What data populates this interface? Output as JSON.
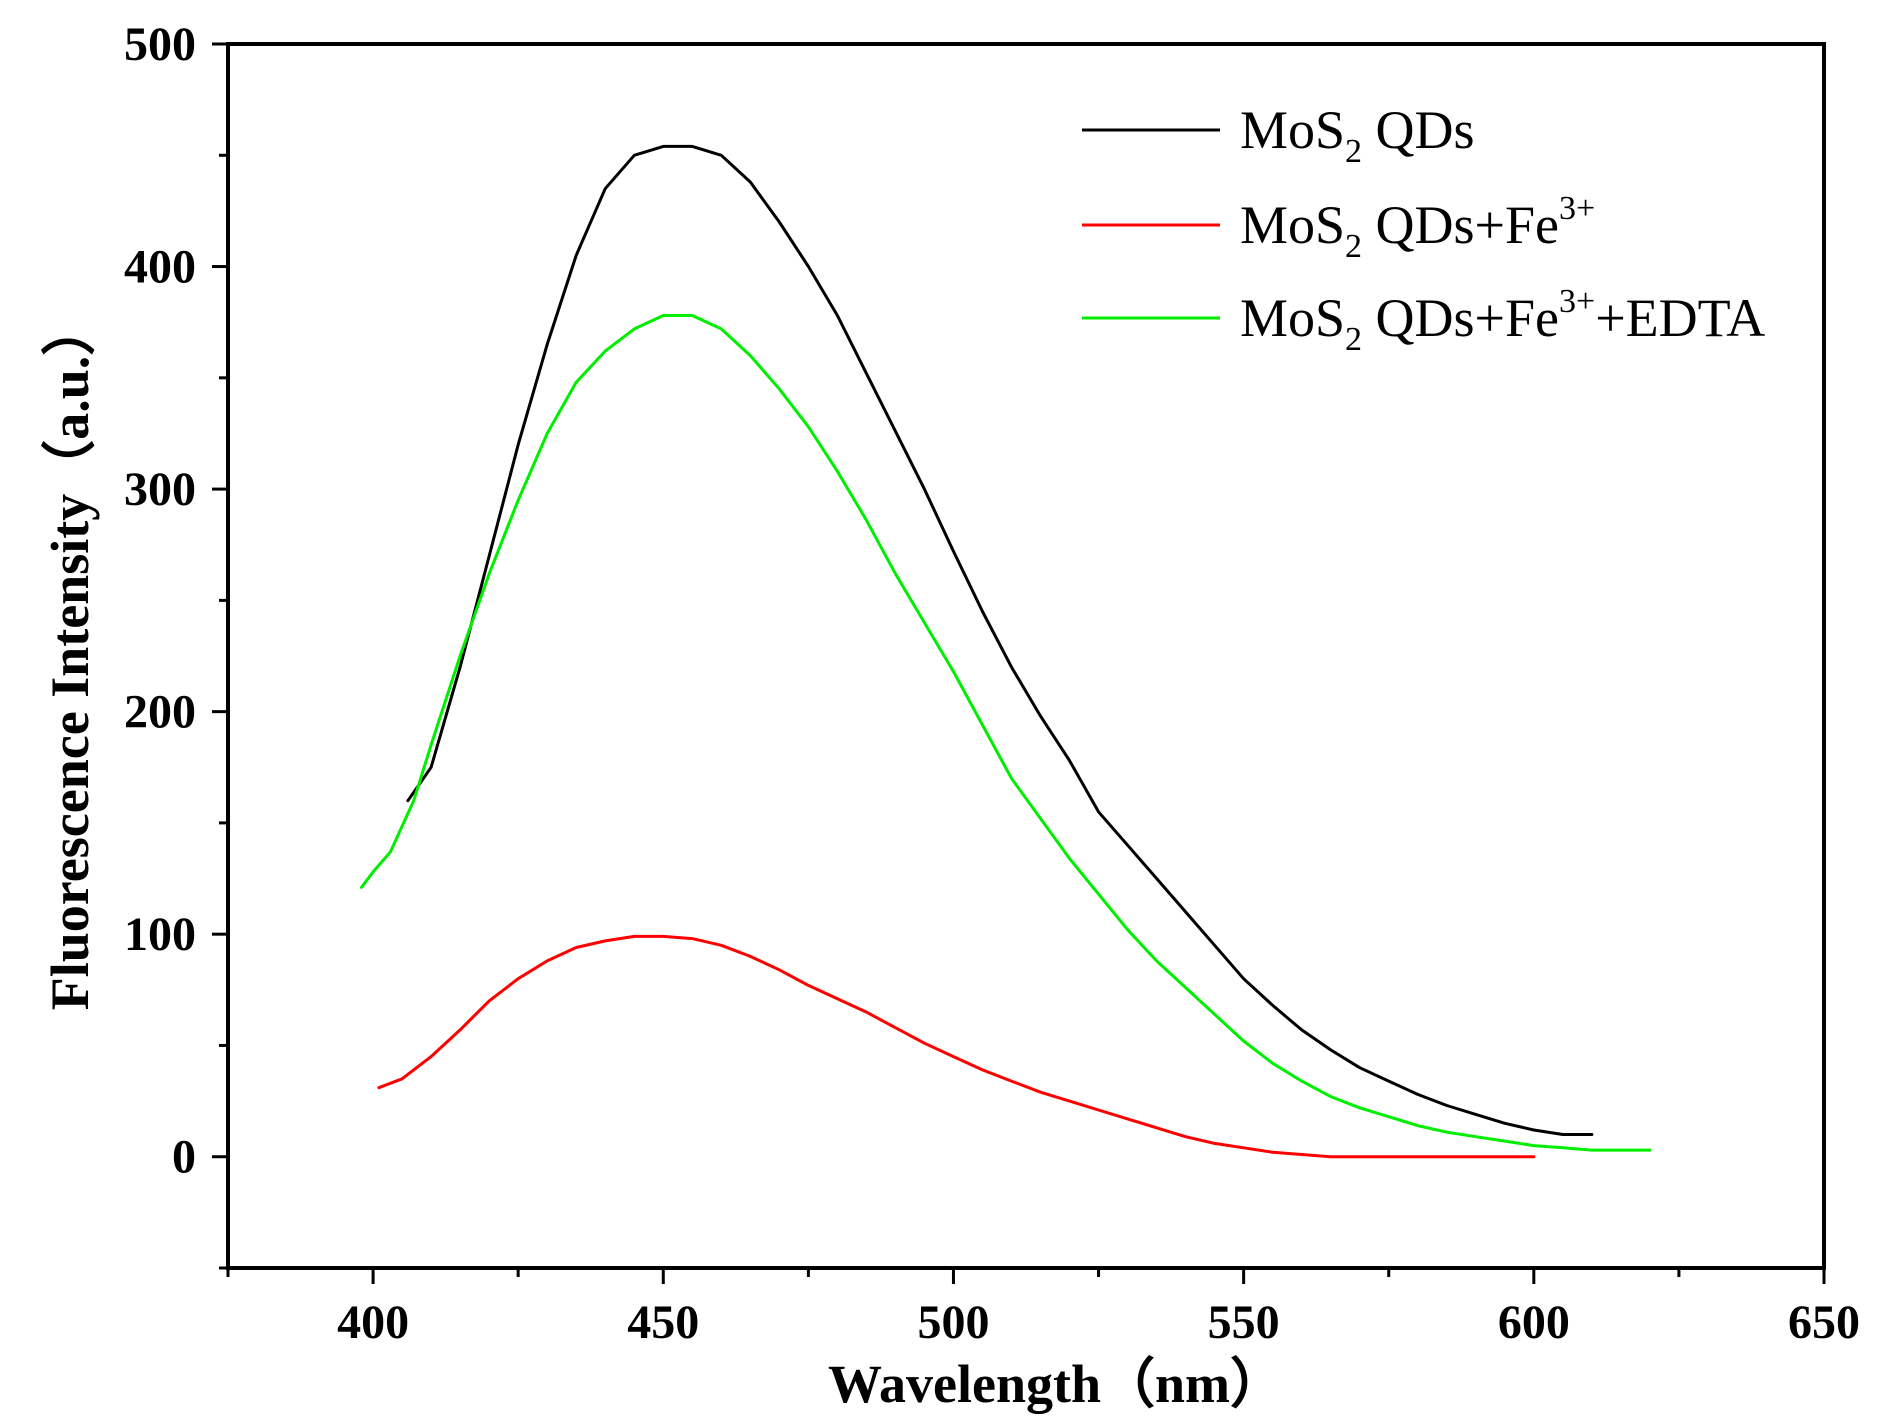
{
  "chart_data": {
    "type": "line",
    "title": "",
    "xlabel": "Wavelength（nm）",
    "ylabel": "Fluorescence Intensity（a.u.）",
    "xlim": [
      375,
      650
    ],
    "ylim": [
      -50,
      500
    ],
    "x_ticks": [
      400,
      450,
      500,
      550,
      600,
      650
    ],
    "x_tick_labels": [
      "400",
      "450",
      "500",
      "550",
      "600",
      "650"
    ],
    "y_ticks": [
      0,
      100,
      200,
      300,
      400,
      500
    ],
    "y_tick_labels": [
      "0",
      "100",
      "200",
      "300",
      "400",
      "500"
    ],
    "grid": false,
    "legend_position": "top-right",
    "series": [
      {
        "name": "MoS2 QDs",
        "legend": {
          "base": "MoS",
          "sub": "2",
          "mid": " QDs",
          "sup": "",
          "tail": ""
        },
        "color": "#000000",
        "x": [
          406,
          410,
          415,
          420,
          425,
          430,
          435,
          440,
          445,
          450,
          455,
          460,
          465,
          470,
          475,
          480,
          485,
          490,
          495,
          500,
          505,
          510,
          515,
          520,
          525,
          530,
          535,
          540,
          545,
          550,
          555,
          560,
          565,
          570,
          575,
          580,
          585,
          590,
          595,
          600,
          605,
          610
        ],
        "y": [
          160,
          175,
          220,
          270,
          320,
          365,
          405,
          435,
          450,
          454,
          454,
          450,
          438,
          420,
          400,
          378,
          352,
          326,
          300,
          272,
          245,
          220,
          198,
          178,
          155,
          140,
          125,
          110,
          95,
          80,
          68,
          57,
          48,
          40,
          34,
          28,
          23,
          19,
          15,
          12,
          10,
          10
        ]
      },
      {
        "name": "MoS2 QDs+Fe3+",
        "legend": {
          "base": "MoS",
          "sub": "2",
          "mid": " QDs+Fe",
          "sup": "3+",
          "tail": ""
        },
        "color": "#ff0000",
        "x": [
          401,
          405,
          410,
          415,
          420,
          425,
          430,
          435,
          440,
          445,
          450,
          455,
          460,
          465,
          470,
          475,
          480,
          485,
          490,
          495,
          500,
          505,
          510,
          515,
          520,
          525,
          530,
          535,
          540,
          545,
          550,
          555,
          560,
          565,
          570,
          575,
          580,
          585,
          590,
          595,
          600
        ],
        "y": [
          31,
          35,
          45,
          57,
          70,
          80,
          88,
          94,
          97,
          99,
          99,
          98,
          95,
          90,
          84,
          77,
          71,
          65,
          58,
          51,
          45,
          39,
          34,
          29,
          25,
          21,
          17,
          13,
          9,
          6,
          4,
          2,
          1,
          0,
          0,
          0,
          0,
          0,
          0,
          0,
          0
        ]
      },
      {
        "name": "MoS2 QDs+Fe3++EDTA",
        "legend": {
          "base": "MoS",
          "sub": "2",
          "mid": " QDs+Fe",
          "sup": "3+",
          "tail": "+EDTA"
        },
        "color": "#00ee00",
        "x": [
          398,
          400,
          403,
          407,
          410,
          415,
          420,
          425,
          430,
          435,
          440,
          445,
          450,
          455,
          460,
          465,
          470,
          475,
          480,
          485,
          490,
          495,
          500,
          505,
          510,
          515,
          520,
          525,
          530,
          535,
          540,
          545,
          550,
          555,
          560,
          565,
          570,
          575,
          580,
          585,
          590,
          595,
          600,
          605,
          610,
          615,
          620
        ],
        "y": [
          121,
          128,
          137,
          160,
          185,
          225,
          262,
          295,
          325,
          348,
          362,
          372,
          378,
          378,
          372,
          360,
          345,
          328,
          308,
          286,
          262,
          240,
          218,
          194,
          170,
          152,
          134,
          118,
          102,
          88,
          76,
          64,
          52,
          42,
          34,
          27,
          22,
          18,
          14,
          11,
          9,
          7,
          5,
          4,
          3,
          3,
          3
        ]
      }
    ]
  }
}
